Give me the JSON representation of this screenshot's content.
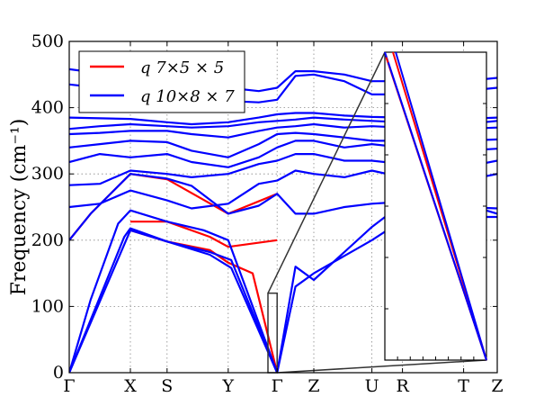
{
  "chart_data": {
    "type": "line",
    "ylabel": "Frequency (cm⁻¹)",
    "ylim": [
      0,
      500
    ],
    "y_ticks": [
      0,
      100,
      200,
      300,
      400,
      500
    ],
    "y_tick_labels": [
      "0",
      "100",
      "200",
      "300",
      "400",
      "500"
    ],
    "x_ticks": [
      {
        "label": "Γ",
        "pos": 0
      },
      {
        "label": "X",
        "pos": 1
      },
      {
        "label": "S",
        "pos": 1.6
      },
      {
        "label": "Y",
        "pos": 2.6
      },
      {
        "label": "Γ",
        "pos": 3.4
      },
      {
        "label": "Z",
        "pos": 4.0
      },
      {
        "label": "U",
        "pos": 4.95
      },
      {
        "label": "R",
        "pos": 5.45
      },
      {
        "label": "T",
        "pos": 6.45
      },
      {
        "label": "Z",
        "pos": 7.0
      }
    ],
    "xlim": [
      0,
      7.0
    ],
    "grid": true,
    "legend": {
      "placement": "top-left",
      "entries": [
        {
          "label": "q  7×5 × 5",
          "color": "#ff0000"
        },
        {
          "label": "q  10×8 × 7",
          "color": "#0000ff"
        }
      ]
    },
    "series": [
      {
        "name": "q  7×5 × 5",
        "color": "#ff0000",
        "bands": [
          {
            "x": [
              0,
              0.35,
              1.0,
              1.6,
              2.6,
              3.4
            ],
            "y": [
              200,
              240,
              300,
              292,
              240,
              270
            ]
          },
          {
            "x": [
              1.0,
              1.6,
              2.3,
              2.6,
              3.4
            ],
            "y": [
              228,
              228,
              205,
              190,
              200
            ]
          },
          {
            "x": [
              1.0,
              1.6,
              2.3,
              2.6,
              3.0,
              3.4
            ],
            "y": [
              215,
              198,
              185,
              166,
              150,
              0
            ]
          }
        ]
      },
      {
        "name": "q  10×8 × 7",
        "color": "#0000ff",
        "bands": [
          {
            "x": [
              0,
              1.0,
              1.6,
              2.3,
              2.65,
              3.4,
              3.7,
              4.0,
              4.95,
              5.45,
              6.45,
              7.0
            ],
            "y": [
              0,
              215,
              198,
              182,
              170,
              0,
              160,
              140,
              220,
              255,
              255,
              240
            ]
          },
          {
            "x": [
              0,
              0.9,
              1.0,
              1.6,
              2.3,
              2.65,
              3.4,
              3.7,
              4.0,
              4.95,
              5.45,
              6.45,
              7.0
            ],
            "y": [
              0,
              205,
              218,
              198,
              178,
              158,
              0,
              130,
              150,
              200,
              230,
              235,
              235
            ]
          },
          {
            "x": [
              0,
              0.35,
              0.8,
              1.0,
              1.6,
              2.2,
              2.6,
              3.4
            ],
            "y": [
              0,
              110,
              225,
              245,
              228,
              215,
              200,
              0
            ]
          },
          {
            "x": [
              0,
              0.35,
              1.0,
              1.6,
              2.0,
              2.6,
              3.1,
              3.4,
              3.7,
              4.0,
              4.5,
              4.95,
              5.45,
              6.45,
              7.0
            ],
            "y": [
              200,
              240,
              300,
              293,
              282,
              240,
              252,
              270,
              240,
              240,
              250,
              255,
              258,
              250,
              248
            ]
          },
          {
            "x": [
              0,
              0.5,
              1.0,
              1.6,
              2.0,
              2.6,
              3.1,
              3.4,
              3.7,
              4.0,
              4.5,
              4.95,
              5.45,
              6.45,
              7.0
            ],
            "y": [
              250,
              255,
              275,
              260,
              248,
              255,
              285,
              290,
              305,
              300,
              295,
              305,
              295,
              290,
              300
            ]
          },
          {
            "x": [
              0,
              0.5,
              1.0,
              1.6,
              2.0,
              2.6,
              3.1,
              3.4,
              3.7,
              4.0,
              4.5,
              4.95,
              5.45,
              6.45,
              7.0
            ],
            "y": [
              283,
              285,
              305,
              300,
              295,
              300,
              315,
              320,
              330,
              330,
              320,
              320,
              315,
              310,
              320
            ]
          },
          {
            "x": [
              0,
              0.5,
              1.0,
              1.6,
              2.0,
              2.6,
              3.1,
              3.4,
              3.7,
              4.0,
              4.5,
              4.95,
              5.45,
              6.45,
              7.0
            ],
            "y": [
              318,
              330,
              325,
              330,
              318,
              310,
              325,
              340,
              350,
              350,
              340,
              345,
              340,
              335,
              338
            ]
          },
          {
            "x": [
              0,
              0.5,
              1.0,
              1.6,
              2.0,
              2.6,
              3.1,
              3.4,
              3.7,
              4.0,
              4.5,
              4.95,
              5.45,
              6.45,
              7.0
            ],
            "y": [
              340,
              345,
              350,
              348,
              335,
              325,
              345,
              360,
              362,
              360,
              355,
              350,
              350,
              350,
              352
            ]
          },
          {
            "x": [
              0,
              0.5,
              1.0,
              1.6,
              2.0,
              2.6,
              3.1,
              3.4,
              3.7,
              4.0,
              4.5,
              4.95,
              5.45,
              6.45,
              7.0
            ],
            "y": [
              360,
              362,
              365,
              365,
              360,
              355,
              365,
              370,
              372,
              375,
              370,
              372,
              370,
              368,
              370
            ]
          },
          {
            "x": [
              0,
              0.5,
              1.0,
              1.6,
              2.0,
              2.6,
              3.1,
              3.4,
              3.7,
              4.0,
              4.5,
              4.95,
              5.45,
              6.45,
              7.0
            ],
            "y": [
              368,
              372,
              375,
              372,
              370,
              372,
              378,
              380,
              382,
              385,
              382,
              380,
              378,
              375,
              380
            ]
          },
          {
            "x": [
              0,
              0.5,
              1.0,
              1.6,
              2.0,
              2.6,
              3.1,
              3.4,
              3.7,
              4.0,
              4.5,
              4.95,
              5.45,
              6.45,
              7.0
            ],
            "y": [
              385,
              384,
              383,
              378,
              375,
              378,
              385,
              390,
              392,
              392,
              388,
              386,
              385,
              383,
              385
            ]
          },
          {
            "x": [
              0,
              0.5,
              1.0,
              1.6,
              2.0,
              2.6,
              3.1,
              3.4,
              3.7,
              4.0,
              4.5,
              4.95,
              5.45,
              6.45,
              7.0
            ],
            "y": [
              435,
              430,
              425,
              420,
              418,
              410,
              408,
              412,
              448,
              450,
              440,
              420,
              420,
              425,
              430
            ]
          },
          {
            "x": [
              0,
              0.5,
              1.0,
              1.6,
              2.0,
              2.6,
              3.1,
              3.4,
              3.7,
              4.0,
              4.5,
              4.95,
              5.45,
              6.45,
              7.0
            ],
            "y": [
              458,
              452,
              448,
              440,
              435,
              430,
              425,
              430,
              455,
              455,
              450,
              440,
              440,
              440,
              445
            ]
          }
        ]
      }
    ]
  }
}
